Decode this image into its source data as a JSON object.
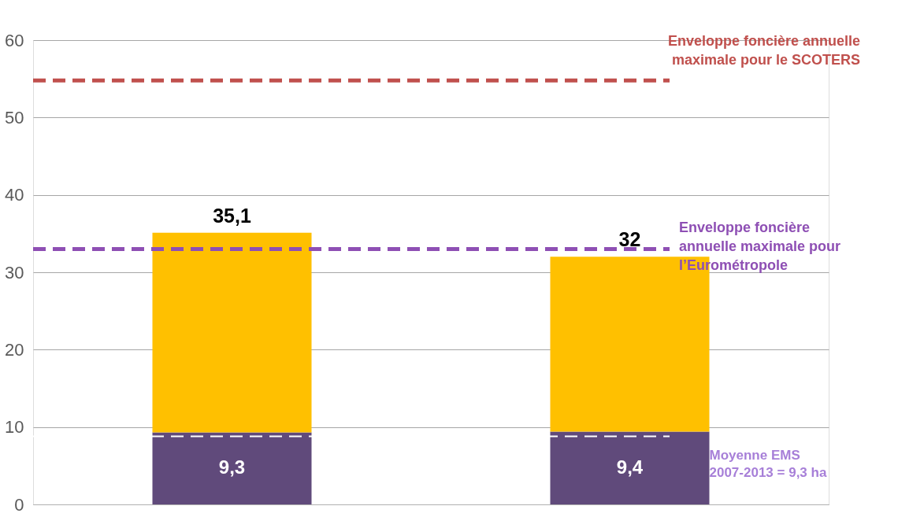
{
  "chart_data": {
    "type": "bar",
    "categories": [
      null,
      null
    ],
    "stacked": true,
    "series": [
      {
        "color": "#604a7b",
        "values": [
          9.3,
          9.4
        ],
        "value_labels": [
          "9,3",
          "9,4"
        ]
      },
      {
        "color": "#ffc000",
        "values": [
          25.8,
          22.6
        ]
      }
    ],
    "totals": [
      "35,1",
      "32"
    ],
    "ylim": [
      0,
      60
    ],
    "yticks": [
      0,
      10,
      20,
      30,
      40,
      50,
      60
    ],
    "grid": "y",
    "tick_labels": "y",
    "ref_lines": [
      {
        "axis": "y",
        "value": 54.8,
        "label": "Enveloppe foncière annuelle maximale pour le SCOTERS",
        "color": "#c0504d",
        "line_style": "dashed"
      },
      {
        "axis": "y",
        "value": 33,
        "label": "Enveloppe foncière annuelle maximale pour l’Eurométropole",
        "color": "#8e4fb4",
        "line_style": "dashed"
      },
      {
        "axis": "y",
        "value": 8.8,
        "color": "#ffffff",
        "line_style": "dashed"
      }
    ],
    "annotations": [
      "Moyenne EMS 2007-2013 = 9,3 ha"
    ]
  }
}
